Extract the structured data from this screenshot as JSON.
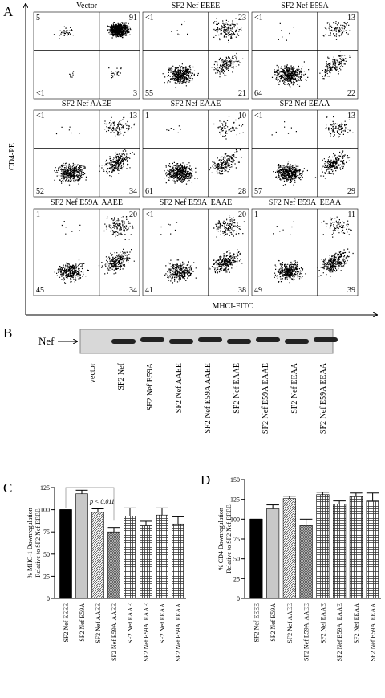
{
  "figure": {
    "panel_a": {
      "label": "A",
      "y_axis": "CD4-PE",
      "x_axis": "MHCI-FITC",
      "plots": [
        {
          "title": "Vector",
          "quadrants": [
            "5",
            "91",
            "<1",
            "3"
          ]
        },
        {
          "title": "SF2 Nef EEEE",
          "quadrants": [
            "<1",
            "23",
            "55",
            "21"
          ]
        },
        {
          "title": "SF2 Nef E59A",
          "quadrants": [
            "<1",
            "13",
            "64",
            "22"
          ]
        },
        {
          "title": "SF2 Nef AAEE",
          "quadrants": [
            "<1",
            "13",
            "52",
            "34"
          ]
        },
        {
          "title": "SF2 Nef EAAE",
          "quadrants": [
            "1",
            "10",
            "61",
            "28"
          ]
        },
        {
          "title": "SF2 Nef EEAA",
          "quadrants": [
            "<1",
            "13",
            "57",
            "29"
          ]
        },
        {
          "title": "SF2 Nef E59A  AAEE",
          "quadrants": [
            "1",
            "20",
            "45",
            "34"
          ]
        },
        {
          "title": "SF2 Nef E59A  EAAE",
          "quadrants": [
            "<1",
            "20",
            "41",
            "38"
          ]
        },
        {
          "title": "SF2 Nef E59A  EEAA",
          "quadrants": [
            "1",
            "11",
            "49",
            "39"
          ]
        }
      ]
    },
    "panel_b": {
      "label": "B",
      "band_label": "Nef",
      "lanes": [
        "vector",
        "SF2 Nef",
        "SF2 Nef E59A",
        "SF2 Nef AAEE",
        "SF2 Nef E59A AAEE",
        "SF2 Nef EAAE",
        "SF2 Nef E59A EAAE",
        "SF2 Nef EEAA",
        "SF2 Nef E59A EEAA"
      ]
    }
  },
  "chart_data": [
    {
      "type": "bar",
      "panel_label": "C",
      "ylabel_lines": [
        "% MHC-1 Downregulation",
        "Relative to SF2 Nef EEEE"
      ],
      "categories": [
        "SF2 Nef EEEE",
        "SF2 Nef E59A",
        "SF2 Nef AAEE",
        "SF2 Nef E59A  AAEE",
        "SF2 Nef EAAE",
        "SF2 Nef E59A  EAAE",
        "SF2 Nef EEAA",
        "SF2 Nef E59A  EEAA"
      ],
      "values": [
        100,
        118,
        97,
        75,
        93,
        82,
        94,
        84
      ],
      "errors": [
        0,
        4,
        4,
        5,
        9,
        5,
        8,
        8
      ],
      "bar_styles": [
        "black",
        "light",
        "hatch",
        "dense",
        "check",
        "check",
        "check",
        "check"
      ],
      "ylim": [
        0,
        125
      ],
      "yticks": [
        0,
        25,
        50,
        75,
        100,
        125
      ],
      "annotation": "p < 0.011"
    },
    {
      "type": "bar",
      "panel_label": "D",
      "ylabel_lines": [
        "% CD4 Downregulation",
        "Relative to SF2 Nef EEEE"
      ],
      "categories": [
        "SF2 Nef EEEE",
        "SF2 Nef E59A",
        "SF2 Nef AAEE",
        "SF2 Nef E59A  AAEE",
        "SF2 Nef EAAE",
        "SF2 Nef E59A  EAAE",
        "SF2 Nef EEAA",
        "SF2 Nef E59A  EEAA"
      ],
      "values": [
        100,
        113,
        126,
        92,
        131,
        119,
        129,
        123
      ],
      "errors": [
        0,
        5,
        3,
        8,
        3,
        4,
        4,
        10
      ],
      "bar_styles": [
        "black",
        "light",
        "hatch",
        "dense",
        "check",
        "check",
        "check",
        "check"
      ],
      "ylim": [
        0,
        150
      ],
      "yticks": [
        0,
        25,
        50,
        75,
        100,
        125,
        150
      ]
    }
  ]
}
